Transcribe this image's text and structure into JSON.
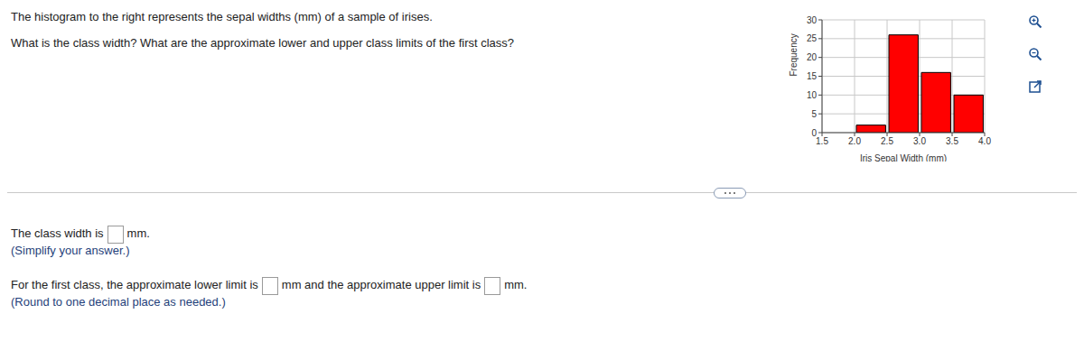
{
  "question": {
    "lines": [
      "The histogram to the right represents the sepal widths (mm) of a sample of irises.",
      "What is the class width? What are the approximate lower and upper class limits of the first class?"
    ]
  },
  "answers": [
    {
      "segments": [
        "The class width is",
        "mm."
      ],
      "hint": "(Simplify your answer.)"
    },
    {
      "segments": [
        "For the first class, the approximate lower limit is",
        "mm and the approximate upper limit is",
        "mm."
      ],
      "hint": "(Round to one decimal place as needed.)"
    }
  ],
  "chart_data": {
    "type": "histogram",
    "xlabel": "Iris Sepal Width (mm)",
    "ylabel": "Frequency",
    "bins": [
      1.5,
      2.0,
      2.5,
      3.0,
      3.5,
      4.0
    ],
    "values": [
      0,
      2,
      26,
      16,
      10
    ],
    "color": "#ff0000",
    "xlim": [
      1.5,
      4.0
    ],
    "ylim": [
      0,
      30
    ],
    "xticks": [
      1.5,
      {
        "value": 2,
        "label": "2.0"
      },
      2.5,
      {
        "value": 3,
        "label": "3.0"
      },
      3.5,
      {
        "value": 4,
        "label": "4.0"
      }
    ],
    "yticks": [
      0,
      5,
      10,
      15,
      20,
      25,
      30
    ],
    "grid": true
  }
}
